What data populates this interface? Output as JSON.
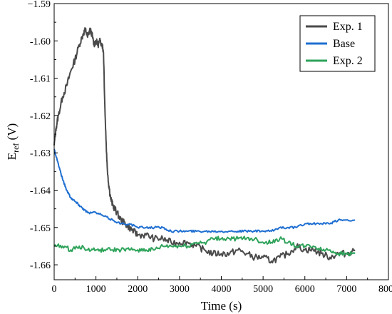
{
  "chart_data": {
    "type": "line",
    "title": "",
    "xlabel": "Time (s)",
    "ylabel_main": "E",
    "ylabel_sub": "ref",
    "ylabel_suffix": " (V)",
    "xlim": [
      0,
      8000
    ],
    "ylim": [
      -1.664,
      -1.59
    ],
    "xticks": [
      0,
      1000,
      2000,
      3000,
      4000,
      5000,
      6000,
      7000,
      8000
    ],
    "xtick_labels": [
      "0",
      "1000",
      "2000",
      "3000",
      "4000",
      "5000",
      "6000",
      "7000",
      "8000"
    ],
    "yticks": [
      -1.59,
      -1.6,
      -1.61,
      -1.62,
      -1.63,
      -1.64,
      -1.65,
      -1.66
    ],
    "ytick_labels": [
      "−1.59",
      "-1.60",
      "-1.61",
      "-1.62",
      "-1.63",
      "-1.64",
      "-1.65",
      "-1.66"
    ],
    "grid": false,
    "legend_position": "top-right",
    "series": [
      {
        "name": "Exp. 1",
        "color": "#4a4a4a",
        "points": [
          [
            0,
            -1.628
          ],
          [
            50,
            -1.623
          ],
          [
            100,
            -1.62
          ],
          [
            200,
            -1.615
          ],
          [
            300,
            -1.612
          ],
          [
            400,
            -1.608
          ],
          [
            500,
            -1.605
          ],
          [
            600,
            -1.601
          ],
          [
            700,
            -1.598
          ],
          [
            750,
            -1.597
          ],
          [
            800,
            -1.599
          ],
          [
            850,
            -1.597
          ],
          [
            900,
            -1.598
          ],
          [
            950,
            -1.601
          ],
          [
            1000,
            -1.6
          ],
          [
            1050,
            -1.601
          ],
          [
            1100,
            -1.6
          ],
          [
            1150,
            -1.601
          ],
          [
            1180,
            -1.603
          ],
          [
            1220,
            -1.62
          ],
          [
            1260,
            -1.632
          ],
          [
            1300,
            -1.638
          ],
          [
            1350,
            -1.642
          ],
          [
            1400,
            -1.644
          ],
          [
            1450,
            -1.645
          ],
          [
            1500,
            -1.646
          ],
          [
            1600,
            -1.648
          ],
          [
            1700,
            -1.649
          ],
          [
            1800,
            -1.65
          ],
          [
            1900,
            -1.651
          ],
          [
            2000,
            -1.652
          ],
          [
            2200,
            -1.652
          ],
          [
            2400,
            -1.653
          ],
          [
            2600,
            -1.653
          ],
          [
            2800,
            -1.654
          ],
          [
            3000,
            -1.654
          ],
          [
            3200,
            -1.654
          ],
          [
            3400,
            -1.655
          ],
          [
            3600,
            -1.656
          ],
          [
            3800,
            -1.657
          ],
          [
            4000,
            -1.657
          ],
          [
            4200,
            -1.657
          ],
          [
            4400,
            -1.656
          ],
          [
            4600,
            -1.657
          ],
          [
            4800,
            -1.658
          ],
          [
            5000,
            -1.658
          ],
          [
            5200,
            -1.659
          ],
          [
            5400,
            -1.658
          ],
          [
            5600,
            -1.657
          ],
          [
            5800,
            -1.655
          ],
          [
            6000,
            -1.656
          ],
          [
            6200,
            -1.656
          ],
          [
            6400,
            -1.657
          ],
          [
            6600,
            -1.658
          ],
          [
            6800,
            -1.657
          ],
          [
            7000,
            -1.657
          ],
          [
            7200,
            -1.656
          ]
        ]
      },
      {
        "name": "Base",
        "color": "#1f6fd1",
        "points": [
          [
            0,
            -1.629
          ],
          [
            100,
            -1.633
          ],
          [
            200,
            -1.637
          ],
          [
            300,
            -1.64
          ],
          [
            400,
            -1.642
          ],
          [
            500,
            -1.643
          ],
          [
            600,
            -1.644
          ],
          [
            700,
            -1.645
          ],
          [
            800,
            -1.646
          ],
          [
            1000,
            -1.646
          ],
          [
            1200,
            -1.647
          ],
          [
            1400,
            -1.648
          ],
          [
            1600,
            -1.649
          ],
          [
            1800,
            -1.649
          ],
          [
            2000,
            -1.65
          ],
          [
            2200,
            -1.65
          ],
          [
            2400,
            -1.65
          ],
          [
            2600,
            -1.65
          ],
          [
            2800,
            -1.651
          ],
          [
            3000,
            -1.651
          ],
          [
            3200,
            -1.651
          ],
          [
            3400,
            -1.651
          ],
          [
            3600,
            -1.651
          ],
          [
            3800,
            -1.651
          ],
          [
            4000,
            -1.651
          ],
          [
            4200,
            -1.651
          ],
          [
            4400,
            -1.651
          ],
          [
            4600,
            -1.651
          ],
          [
            4800,
            -1.651
          ],
          [
            5000,
            -1.651
          ],
          [
            5200,
            -1.651
          ],
          [
            5400,
            -1.65
          ],
          [
            5600,
            -1.65
          ],
          [
            5800,
            -1.65
          ],
          [
            6000,
            -1.649
          ],
          [
            6200,
            -1.649
          ],
          [
            6400,
            -1.649
          ],
          [
            6600,
            -1.649
          ],
          [
            6800,
            -1.648
          ],
          [
            7000,
            -1.648
          ],
          [
            7200,
            -1.648
          ]
        ]
      },
      {
        "name": "Exp. 2",
        "color": "#2ea35a",
        "points": [
          [
            0,
            -1.655
          ],
          [
            200,
            -1.655
          ],
          [
            400,
            -1.656
          ],
          [
            600,
            -1.655
          ],
          [
            800,
            -1.656
          ],
          [
            1000,
            -1.656
          ],
          [
            1200,
            -1.656
          ],
          [
            1400,
            -1.656
          ],
          [
            1600,
            -1.656
          ],
          [
            1800,
            -1.656
          ],
          [
            2000,
            -1.656
          ],
          [
            2200,
            -1.656
          ],
          [
            2400,
            -1.656
          ],
          [
            2600,
            -1.655
          ],
          [
            2800,
            -1.655
          ],
          [
            3000,
            -1.655
          ],
          [
            3200,
            -1.655
          ],
          [
            3400,
            -1.654
          ],
          [
            3600,
            -1.654
          ],
          [
            3800,
            -1.653
          ],
          [
            4000,
            -1.653
          ],
          [
            4200,
            -1.653
          ],
          [
            4400,
            -1.653
          ],
          [
            4600,
            -1.653
          ],
          [
            4800,
            -1.653
          ],
          [
            5000,
            -1.654
          ],
          [
            5200,
            -1.654
          ],
          [
            5400,
            -1.653
          ],
          [
            5600,
            -1.654
          ],
          [
            5800,
            -1.655
          ],
          [
            6000,
            -1.655
          ],
          [
            6200,
            -1.655
          ],
          [
            6400,
            -1.656
          ],
          [
            6600,
            -1.656
          ],
          [
            6800,
            -1.657
          ],
          [
            7000,
            -1.657
          ],
          [
            7200,
            -1.657
          ]
        ]
      }
    ]
  }
}
